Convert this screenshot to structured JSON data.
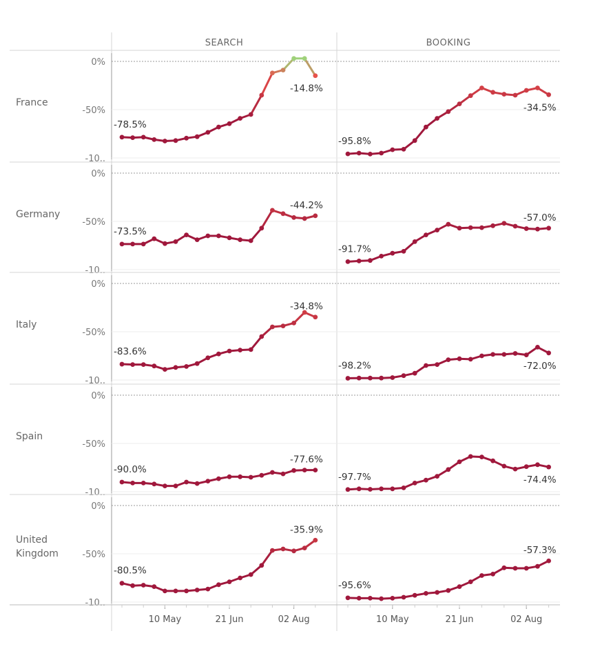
{
  "chart_data": {
    "type": "line",
    "columns": [
      "SEARCH",
      "BOOKING"
    ],
    "row_labels": [
      [
        "France"
      ],
      [
        "Germany"
      ],
      [
        "Italy"
      ],
      [
        "Spain"
      ],
      [
        "United",
        "Kingdom"
      ]
    ],
    "y_ticks": [
      "0%",
      "-50%",
      "-10.."
    ],
    "x_ticks": [
      {
        "label": "10 May",
        "index": 4
      },
      {
        "label": "21 Jun",
        "index": 10
      },
      {
        "label": "02 Aug",
        "index": 16
      }
    ],
    "ylim": [
      -100,
      0
    ],
    "n_points": 19,
    "gradient_colors": {
      "low": "#a0183c",
      "mid": "#e8504a",
      "high": "#9fd17a"
    },
    "series": [
      {
        "country": "France",
        "metric": "SEARCH",
        "start_label": "-78.5%",
        "end_label": "-14.8%",
        "values": [
          -78.5,
          -79.0,
          -78.5,
          -81.0,
          -82.5,
          -82.0,
          -79.5,
          -78.0,
          -73.5,
          -68.0,
          -64.5,
          -59.0,
          -55.0,
          -35.0,
          -12.0,
          -9.0,
          3.0,
          3.0,
          -14.8
        ]
      },
      {
        "country": "France",
        "metric": "BOOKING",
        "start_label": "-95.8%",
        "end_label": "-34.5%",
        "values": [
          -95.8,
          -95.0,
          -96.0,
          -95.0,
          -91.5,
          -91.0,
          -82.0,
          -68.0,
          -59.0,
          -52.0,
          -44.0,
          -35.5,
          -27.5,
          -32.0,
          -34.0,
          -35.0,
          -30.0,
          -27.5,
          -34.5
        ]
      },
      {
        "country": "Germany",
        "metric": "SEARCH",
        "start_label": "-73.5%",
        "end_label": "-44.2%",
        "values": [
          -73.5,
          -73.5,
          -73.5,
          -68.0,
          -73.0,
          -71.0,
          -64.0,
          -69.0,
          -65.0,
          -65.0,
          -67.0,
          -69.0,
          -70.0,
          -57.0,
          -38.5,
          -42.0,
          -46.0,
          -47.0,
          -44.2
        ]
      },
      {
        "country": "Germany",
        "metric": "BOOKING",
        "start_label": "-91.7%",
        "end_label": "-57.0%",
        "values": [
          -91.7,
          -91.0,
          -90.5,
          -86.0,
          -83.0,
          -81.0,
          -71.0,
          -64.0,
          -59.0,
          -53.0,
          -57.0,
          -56.5,
          -56.5,
          -54.5,
          -52.0,
          -55.0,
          -57.5,
          -58.0,
          -57.0
        ]
      },
      {
        "country": "Italy",
        "metric": "SEARCH",
        "start_label": "-83.6%",
        "end_label": "-34.8%",
        "values": [
          -83.6,
          -84.0,
          -84.0,
          -85.5,
          -89.0,
          -87.0,
          -86.0,
          -83.0,
          -77.0,
          -73.0,
          -70.0,
          -69.0,
          -68.5,
          -55.0,
          -45.0,
          -44.0,
          -41.0,
          -30.0,
          -34.8
        ]
      },
      {
        "country": "Italy",
        "metric": "BOOKING",
        "start_label": "-98.2%",
        "end_label": "-72.0%",
        "values": [
          -98.2,
          -98.0,
          -98.0,
          -98.0,
          -97.5,
          -95.5,
          -93.0,
          -85.0,
          -84.0,
          -79.0,
          -78.0,
          -78.5,
          -75.0,
          -73.5,
          -73.5,
          -72.5,
          -74.0,
          -66.0,
          -72.0
        ]
      },
      {
        "country": "Spain",
        "metric": "SEARCH",
        "start_label": "-90.0%",
        "end_label": "-77.6%",
        "values": [
          -90.0,
          -91.0,
          -91.0,
          -92.0,
          -94.0,
          -94.0,
          -90.0,
          -91.5,
          -89.0,
          -86.5,
          -84.5,
          -84.5,
          -85.0,
          -83.0,
          -80.0,
          -81.5,
          -78.0,
          -77.6,
          -77.6
        ]
      },
      {
        "country": "Spain",
        "metric": "BOOKING",
        "start_label": "-97.7%",
        "end_label": "-74.4%",
        "values": [
          -97.7,
          -97.0,
          -97.5,
          -97.0,
          -97.0,
          -96.0,
          -91.0,
          -88.0,
          -84.0,
          -77.0,
          -69.0,
          -63.5,
          -64.0,
          -68.0,
          -73.5,
          -76.5,
          -74.0,
          -72.0,
          -74.4
        ]
      },
      {
        "country": "United Kingdom",
        "metric": "SEARCH",
        "start_label": "-80.5%",
        "end_label": "-35.9%",
        "values": [
          -80.5,
          -83.0,
          -82.5,
          -84.0,
          -88.5,
          -88.5,
          -88.5,
          -87.5,
          -86.5,
          -82.0,
          -79.0,
          -75.0,
          -71.5,
          -62.0,
          -46.5,
          -45.0,
          -47.0,
          -44.0,
          -35.9
        ]
      },
      {
        "country": "United Kingdom",
        "metric": "BOOKING",
        "start_label": "-95.6%",
        "end_label": "-57.3%",
        "values": [
          -95.6,
          -96.0,
          -96.0,
          -96.5,
          -96.0,
          -95.0,
          -93.0,
          -91.0,
          -90.0,
          -88.0,
          -84.0,
          -79.0,
          -72.5,
          -71.0,
          -64.5,
          -65.0,
          -65.0,
          -63.0,
          -57.3
        ]
      }
    ]
  }
}
